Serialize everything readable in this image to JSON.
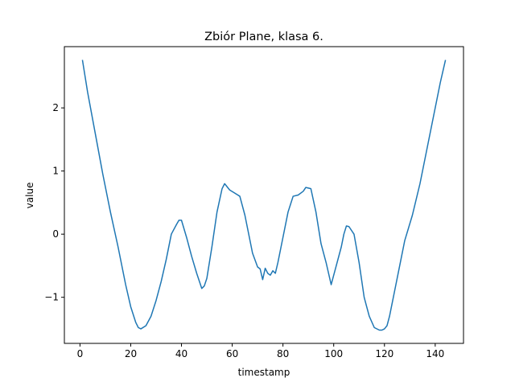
{
  "chart_data": {
    "type": "line",
    "title": "Zbiór Plane, klasa 6.",
    "xlabel": "timestamp",
    "ylabel": "value",
    "xlim": [
      -6.15,
      151.15
    ],
    "ylim": [
      -1.73,
      2.97
    ],
    "grid": false,
    "x_ticks": [
      0,
      20,
      40,
      60,
      80,
      100,
      120,
      140
    ],
    "x_tick_labels": [
      "0",
      "20",
      "40",
      "60",
      "80",
      "100",
      "120",
      "140"
    ],
    "y_ticks": [
      -1,
      0,
      1,
      2
    ],
    "y_tick_labels": [
      "−1",
      "0",
      "1",
      "2"
    ],
    "line_color": "#1f77b4",
    "series": [
      {
        "x": [
          1,
          3,
          6,
          9,
          12,
          15,
          18,
          20,
          22,
          23,
          24,
          26,
          28,
          30,
          32,
          34,
          36,
          38,
          39,
          40,
          42,
          44,
          46,
          48,
          49,
          50,
          52,
          54,
          56,
          57,
          59,
          61,
          63,
          65,
          67,
          68,
          70,
          71,
          72,
          73,
          74,
          75,
          76,
          77,
          78,
          80,
          82,
          84,
          86,
          88,
          89,
          91,
          93,
          95,
          97,
          99,
          101,
          103,
          104,
          105,
          106,
          108,
          110,
          112,
          114,
          116,
          118,
          119,
          120,
          121,
          122,
          124,
          126,
          128,
          131,
          134,
          137,
          140,
          142,
          144
        ],
        "y": [
          2.75,
          2.25,
          1.6,
          0.95,
          0.35,
          -0.2,
          -0.8,
          -1.15,
          -1.4,
          -1.48,
          -1.5,
          -1.45,
          -1.3,
          -1.05,
          -0.75,
          -0.4,
          0.0,
          0.15,
          0.22,
          0.22,
          -0.05,
          -0.35,
          -0.62,
          -0.86,
          -0.82,
          -0.7,
          -0.2,
          0.35,
          0.72,
          0.8,
          0.7,
          0.65,
          0.6,
          0.3,
          -0.1,
          -0.3,
          -0.52,
          -0.55,
          -0.72,
          -0.54,
          -0.62,
          -0.65,
          -0.58,
          -0.62,
          -0.45,
          -0.05,
          0.35,
          0.6,
          0.62,
          0.68,
          0.74,
          0.72,
          0.35,
          -0.15,
          -0.45,
          -0.8,
          -0.5,
          -0.2,
          0.0,
          0.13,
          0.12,
          0.0,
          -0.45,
          -1.0,
          -1.3,
          -1.48,
          -1.52,
          -1.52,
          -1.5,
          -1.45,
          -1.3,
          -0.9,
          -0.5,
          -0.1,
          0.3,
          0.8,
          1.4,
          2.0,
          2.4,
          2.75
        ]
      }
    ]
  }
}
